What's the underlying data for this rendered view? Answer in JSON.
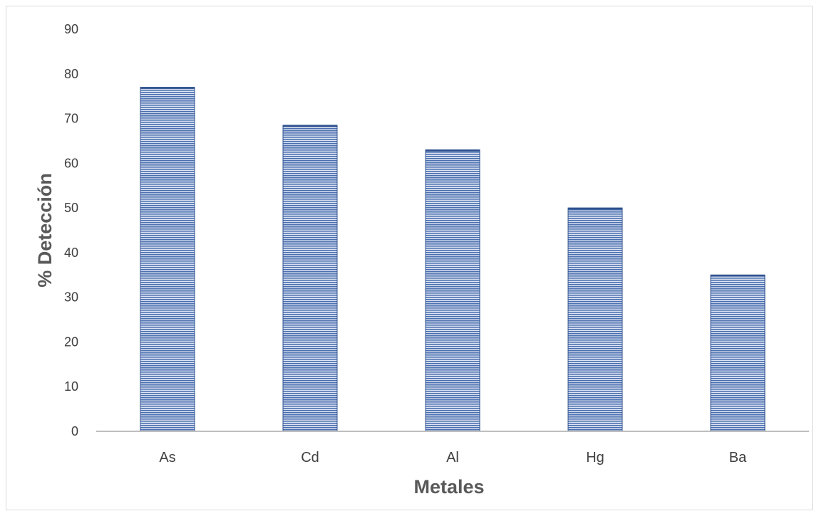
{
  "chart_data": {
    "type": "bar",
    "categories": [
      "As",
      "Cd",
      "Al",
      "Hg",
      "Ba"
    ],
    "values": [
      77,
      68.5,
      63,
      50,
      35
    ],
    "title": "",
    "xlabel": "Metales",
    "ylabel": "% Detección",
    "ylim": [
      0,
      90
    ],
    "yticks": [
      "0",
      "10",
      "20",
      "30",
      "40",
      "50",
      "60",
      "70",
      "80",
      "90"
    ],
    "grid": false,
    "legend": "none",
    "bar_color": "#4a6fb0",
    "bar_stripe_color": "#dfe6f3",
    "bar_edge_color": "#2f528f",
    "axis_color": "#bfbfbf"
  }
}
